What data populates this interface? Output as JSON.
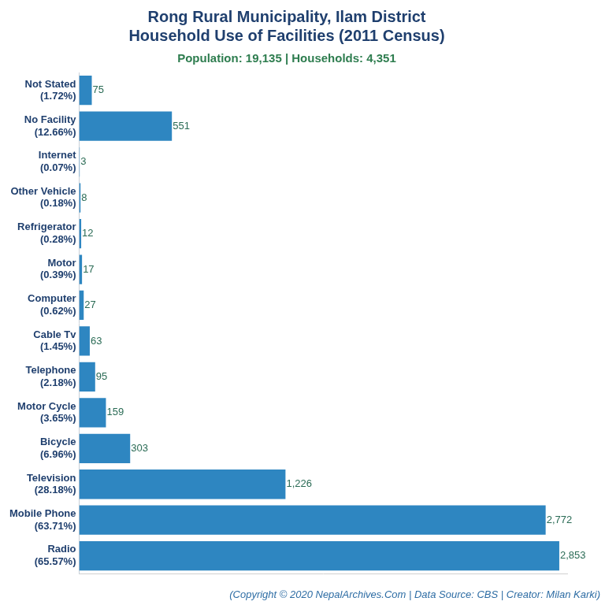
{
  "chart_data": {
    "type": "bar",
    "orientation": "horizontal",
    "title": [
      "Rong Rural Municipality, Ilam District",
      "Household Use of Facilities (2011 Census)"
    ],
    "subtitle": "Population: 19,135 | Households: 4,351",
    "annotations": [
      "(Copyright © 2020 NepalArchives.Com | Data Source: CBS | Creator: Milan Karki)"
    ],
    "categories": [
      [
        "Not Stated",
        "(1.72%)"
      ],
      [
        "No Facility",
        "(12.66%)"
      ],
      [
        "Internet",
        "(0.07%)"
      ],
      [
        "Other Vehicle",
        "(0.18%)"
      ],
      [
        "Refrigerator",
        "(0.28%)"
      ],
      [
        "Motor",
        "(0.39%)"
      ],
      [
        "Computer",
        "(0.62%)"
      ],
      [
        "Cable Tv",
        "(1.45%)"
      ],
      [
        "Telephone",
        "(2.18%)"
      ],
      [
        "Motor Cycle",
        "(3.65%)"
      ],
      [
        "Bicycle",
        "(6.96%)"
      ],
      [
        "Television",
        "(28.18%)"
      ],
      [
        "Mobile Phone",
        "(63.71%)"
      ],
      [
        "Radio",
        "(65.57%)"
      ]
    ],
    "values": [
      75,
      551,
      3,
      8,
      12,
      17,
      27,
      63,
      95,
      159,
      303,
      1226,
      2772,
      2853
    ],
    "value_labels": [
      "75",
      "551",
      "3",
      "8",
      "12",
      "17",
      "27",
      "63",
      "95",
      "159",
      "303",
      "1,226",
      "2,772",
      "2,853"
    ],
    "color": "#2e86c1",
    "xlim": [
      0,
      2900
    ],
    "xticks": [],
    "grid": false,
    "data_labels": true,
    "tick_labels": "y"
  }
}
